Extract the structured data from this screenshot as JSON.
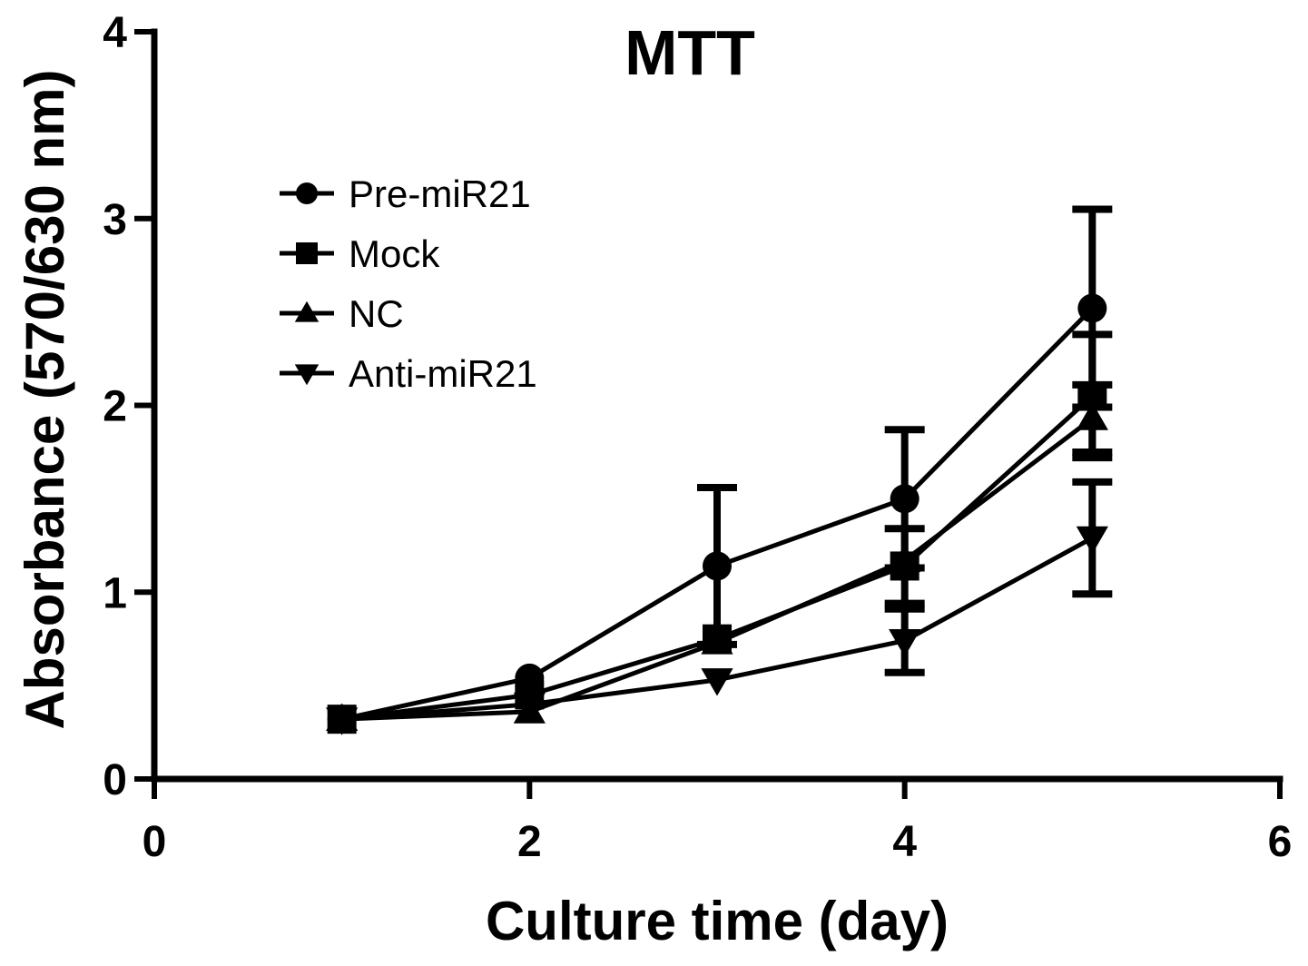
{
  "chart_data": {
    "type": "line",
    "title": "MTT",
    "xlabel": "Culture time (day)",
    "ylabel": "Absorbance (570/630 nm)",
    "xlim": [
      0,
      6
    ],
    "ylim": [
      0,
      4
    ],
    "xticks": [
      0,
      2,
      4,
      6
    ],
    "yticks": [
      0,
      1,
      2,
      3,
      4
    ],
    "grid": false,
    "legend_position": "top-left",
    "x": [
      1,
      2,
      3,
      4,
      5
    ],
    "series": [
      {
        "name": "Pre-miR21",
        "marker": "circle",
        "values": [
          0.32,
          0.54,
          1.14,
          1.5,
          2.52
        ],
        "error": [
          0,
          0,
          0.42,
          0.37,
          0.53
        ]
      },
      {
        "name": "Mock",
        "marker": "square",
        "values": [
          0.32,
          0.45,
          0.75,
          1.14,
          2.05
        ],
        "error": [
          0,
          0,
          0,
          0.2,
          0.33
        ]
      },
      {
        "name": "NC",
        "marker": "triangle-up",
        "values": [
          0.32,
          0.36,
          0.73,
          1.17,
          1.93
        ],
        "error": [
          0,
          0,
          0,
          0,
          0.18
        ]
      },
      {
        "name": "Anti-miR21",
        "marker": "triangle-down",
        "values": [
          0.32,
          0.4,
          0.53,
          0.74,
          1.29
        ],
        "error": [
          0,
          0,
          0,
          0.17,
          0.3
        ]
      }
    ]
  }
}
